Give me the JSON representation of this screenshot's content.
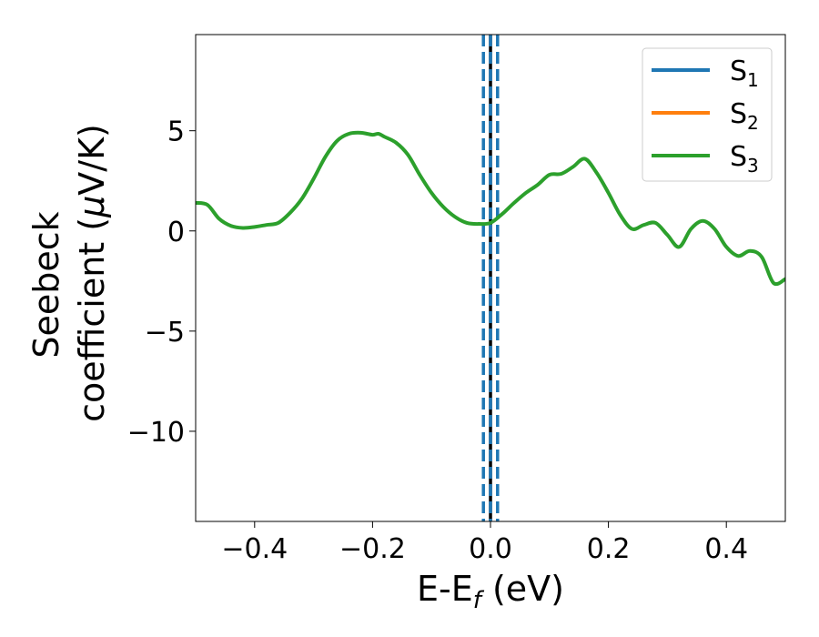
{
  "chart_data": {
    "type": "line",
    "xlabel_main": "E-E",
    "xlabel_sub": "f",
    "xlabel_tail": " (eV)",
    "ylabel_line1": "Seebeck",
    "ylabel_line2_pre": "coefficient  (",
    "ylabel_line2_mu": "μ",
    "ylabel_line2_post": "V/K)",
    "xlim": [
      -0.5,
      0.5
    ],
    "ylim": [
      -14.5,
      9.8
    ],
    "xticks": [
      {
        "value": -0.4,
        "label": "−0.4"
      },
      {
        "value": -0.2,
        "label": "−0.2"
      },
      {
        "value": 0.0,
        "label": "0.0"
      },
      {
        "value": 0.2,
        "label": "0.2"
      },
      {
        "value": 0.4,
        "label": "0.4"
      }
    ],
    "yticks": [
      {
        "value": 5,
        "label": "5"
      },
      {
        "value": 0,
        "label": "0"
      },
      {
        "value": -5,
        "label": "−5"
      },
      {
        "value": -10,
        "label": "−10"
      }
    ],
    "legend_position": "top-right",
    "series": [
      {
        "name": "S",
        "sub": "1",
        "color": "#1f77b4",
        "visible_line": false
      },
      {
        "name": "S",
        "sub": "2",
        "color": "#ff7f0e",
        "visible_line": false
      },
      {
        "name": "S",
        "sub": "3",
        "color": "#2ca02c",
        "visible_line": true
      }
    ],
    "curve": {
      "x": [
        -0.5,
        -0.48,
        -0.46,
        -0.44,
        -0.42,
        -0.4,
        -0.38,
        -0.36,
        -0.34,
        -0.32,
        -0.3,
        -0.28,
        -0.26,
        -0.24,
        -0.22,
        -0.2,
        -0.19,
        -0.18,
        -0.16,
        -0.14,
        -0.12,
        -0.1,
        -0.08,
        -0.06,
        -0.04,
        -0.02,
        0.0,
        0.02,
        0.04,
        0.06,
        0.08,
        0.1,
        0.12,
        0.14,
        0.16,
        0.18,
        0.2,
        0.22,
        0.24,
        0.26,
        0.28,
        0.3,
        0.32,
        0.34,
        0.36,
        0.38,
        0.4,
        0.42,
        0.44,
        0.46,
        0.48,
        0.5
      ],
      "y": [
        1.4,
        1.3,
        0.6,
        0.25,
        0.15,
        0.2,
        0.3,
        0.4,
        0.9,
        1.6,
        2.6,
        3.7,
        4.5,
        4.85,
        4.9,
        4.8,
        4.85,
        4.7,
        4.4,
        3.8,
        2.8,
        1.9,
        1.2,
        0.7,
        0.4,
        0.35,
        0.4,
        0.85,
        1.4,
        1.9,
        2.3,
        2.8,
        2.85,
        3.2,
        3.6,
        2.9,
        1.9,
        0.8,
        0.1,
        0.3,
        0.4,
        -0.2,
        -0.8,
        0.1,
        0.5,
        0.1,
        -0.8,
        -1.25,
        -1.0,
        -1.3,
        -2.6,
        -2.4
      ]
    },
    "vlines": [
      {
        "x": 0.0,
        "color": "#000000",
        "style": "solid"
      },
      {
        "x": -0.012,
        "color": "#1f77b4",
        "style": "dashed"
      },
      {
        "x": 0.0,
        "color": "#1f77b4",
        "style": "dashed"
      },
      {
        "x": 0.012,
        "color": "#1f77b4",
        "style": "dashed"
      }
    ]
  }
}
